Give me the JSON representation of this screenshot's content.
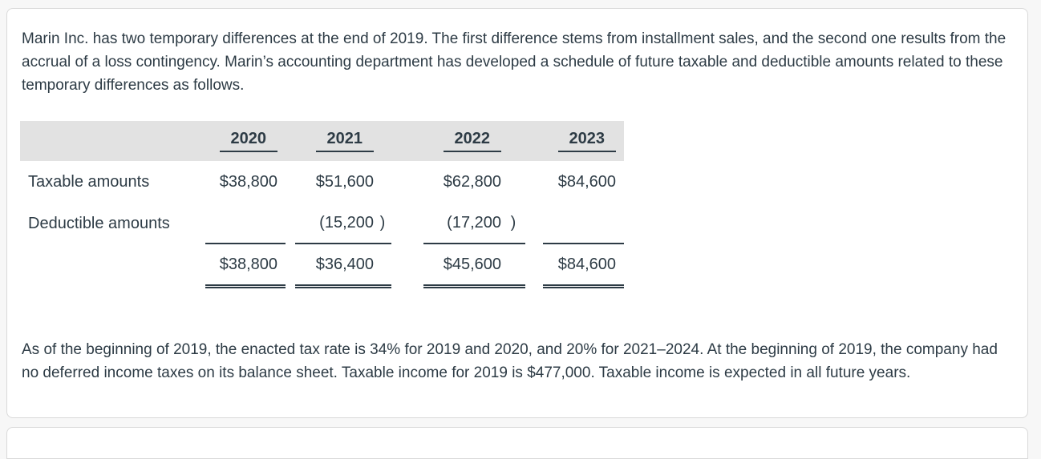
{
  "theme": {
    "text_color": "#2d3b45",
    "card_background": "#ffffff",
    "card_border": "#d9d9d9",
    "table_header_background": "#e2e2e2",
    "page_background": "#f7f7f7"
  },
  "intro": "Marin Inc. has two temporary differences at the end of 2019. The first difference stems from installment sales, and the second one results from the accrual of a loss contingency. Marin’s accounting department has developed a schedule of future taxable and deductible amounts related to these temporary differences as follows.",
  "schedule": {
    "years": [
      "2020",
      "2021",
      "2022",
      "2023"
    ],
    "rows": [
      {
        "label": "Taxable amounts",
        "values": [
          "$38,800",
          "$51,600",
          "$62,800",
          "$84,600"
        ],
        "parens": [
          "",
          "",
          "",
          ""
        ]
      },
      {
        "label": "Deductible amounts",
        "values": [
          "",
          "(15,200",
          "(17,200",
          ""
        ],
        "parens": [
          "",
          ")",
          ")",
          ""
        ]
      }
    ],
    "totals": {
      "label": "",
      "values": [
        "$38,800",
        "$36,400",
        "$45,600",
        "$84,600"
      ]
    }
  },
  "footer": "As of the beginning of 2019, the enacted tax rate is 34% for 2019 and 2020, and 20% for 2021–2024. At the beginning of 2019, the company had no deferred income taxes on its balance sheet. Taxable income for 2019 is $477,000. Taxable income is expected in all future years."
}
